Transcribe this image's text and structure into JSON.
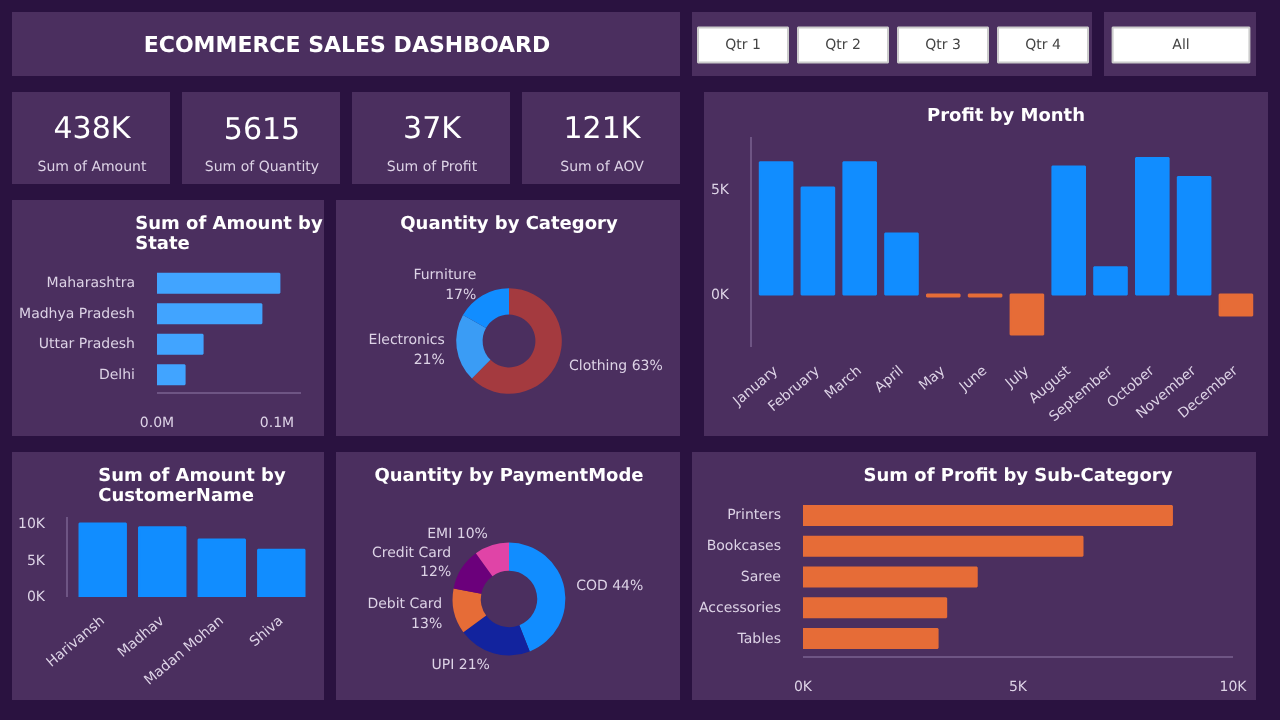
{
  "chart_data": [
    {
      "type": "other",
      "title": "ECOMMERCE SALES DASHBOARD"
    },
    {
      "type": "other",
      "annotations": [
        "Qtr 1",
        "Qtr 2",
        "Qtr 3",
        "Qtr 4"
      ]
    },
    {
      "type": "other",
      "annotations": [
        "All"
      ]
    },
    {
      "type": "other",
      "title": "438K",
      "subtitle": "Sum of Amount"
    },
    {
      "type": "other",
      "title": "5615",
      "subtitle": "Sum of Quantity"
    },
    {
      "type": "other",
      "title": "37K",
      "subtitle": "Sum of Profit"
    },
    {
      "type": "other",
      "title": "121K",
      "subtitle": "Sum of AOV"
    },
    {
      "type": "bar",
      "title": "Profit by Month",
      "categories": [
        "January",
        "February",
        "March",
        "April",
        "May",
        "June",
        "July",
        "August",
        "September",
        "October",
        "November",
        "December"
      ],
      "values": [
        6300,
        5100,
        6300,
        2900,
        -100,
        -100,
        -1900,
        6100,
        1300,
        6500,
        5600,
        -1000
      ],
      "colors": [
        "#118dff",
        "#118dff",
        "#118dff",
        "#118dff",
        "#e66c37",
        "#e66c37",
        "#e66c37",
        "#118dff",
        "#118dff",
        "#118dff",
        "#118dff",
        "#e66c37"
      ],
      "ylim": [
        -2500,
        7500
      ],
      "yticks": [
        {
          "value": 0,
          "label": "0K"
        },
        {
          "value": 5000,
          "label": "5K"
        }
      ]
    },
    {
      "type": "bar",
      "orientation": "horizontal",
      "title": "Sum of Amount by State",
      "categories": [
        "Maharashtra",
        "Madhya Pradesh",
        "Uttar Pradesh",
        "Delhi"
      ],
      "values": [
        0.102,
        0.087,
        0.038,
        0.023
      ],
      "color": "#41a4ff",
      "xlim": [
        0,
        0.12
      ],
      "xticks": [
        {
          "value": 0,
          "label": "0.0M"
        },
        {
          "value": 0.1,
          "label": "0.1M"
        }
      ]
    },
    {
      "type": "donut",
      "title": "Quantity by Category",
      "categories": [
        "Clothing",
        "Electronics",
        "Furniture"
      ],
      "values": [
        63,
        21,
        17
      ],
      "value_labels": [
        "63%",
        "21%",
        "17%"
      ],
      "colors": [
        "#a43a3f",
        "#3a9cf5",
        "#118dff"
      ]
    },
    {
      "type": "bar",
      "title": "Sum of Amount by CustomerName",
      "categories": [
        "Harivansh",
        "Madhav",
        "Madan Mohan",
        "Shiva"
      ],
      "values": [
        10100,
        9600,
        7900,
        6500
      ],
      "color": "#118dff",
      "ylim": [
        0,
        11000
      ],
      "yticks": [
        {
          "value": 0,
          "label": "0K"
        },
        {
          "value": 5000,
          "label": "5K"
        },
        {
          "value": 10000,
          "label": "10K"
        }
      ]
    },
    {
      "type": "donut",
      "title": "Quantity by PaymentMode",
      "categories": [
        "COD",
        "UPI",
        "Debit Card",
        "Credit Card",
        "EMI"
      ],
      "values": [
        44,
        21,
        13,
        12,
        10
      ],
      "value_labels": [
        "44%",
        "21%",
        "13%",
        "12%",
        "10%"
      ],
      "colors": [
        "#118dff",
        "#12239e",
        "#e66c37",
        "#6b007b",
        "#e044a7"
      ]
    },
    {
      "type": "bar",
      "orientation": "horizontal",
      "title": "Sum of Profit by Sub-Category",
      "categories": [
        "Printers",
        "Bookcases",
        "Saree",
        "Accessories",
        "Tables"
      ],
      "values": [
        8580,
        6500,
        4040,
        3330,
        3130
      ],
      "color": "#e66c37",
      "xlim": [
        0,
        10000
      ],
      "xticks": [
        {
          "value": 0,
          "label": "0K"
        },
        {
          "value": 5000,
          "label": "5K"
        },
        {
          "value": 10000,
          "label": "10K"
        }
      ]
    }
  ]
}
